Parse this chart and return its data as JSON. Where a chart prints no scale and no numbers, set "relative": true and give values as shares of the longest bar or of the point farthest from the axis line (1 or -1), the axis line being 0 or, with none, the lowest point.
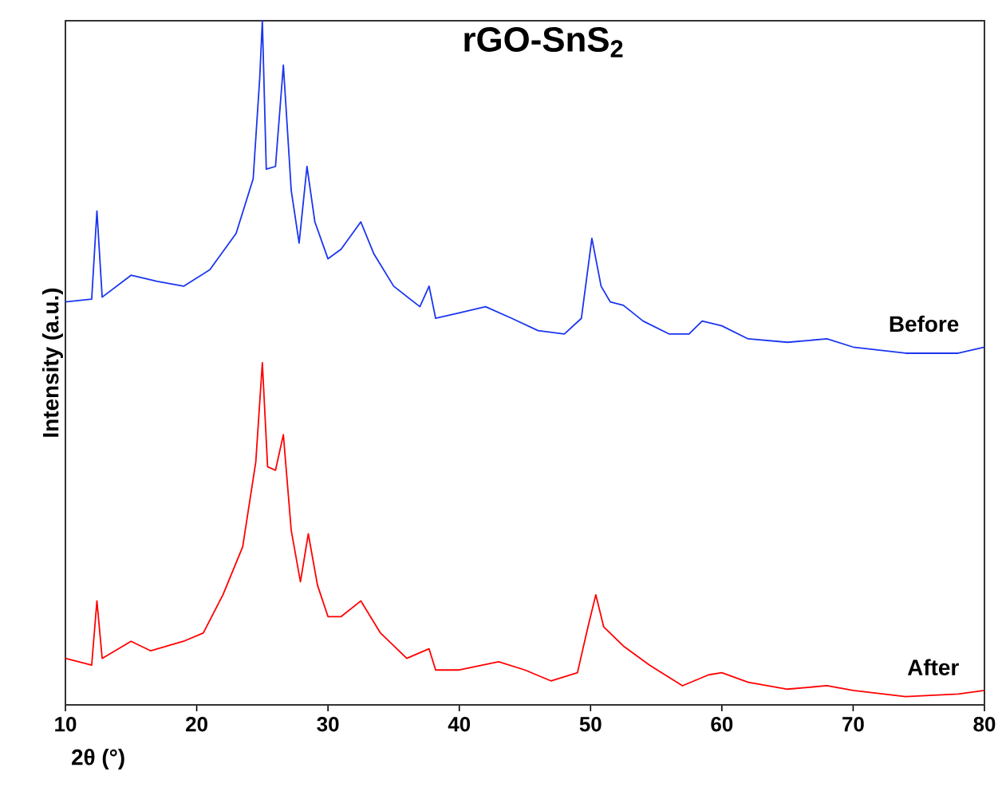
{
  "chart_data": {
    "type": "line",
    "title": "rGO-SnS$_{2}$",
    "xlabel": "2θ (°)",
    "ylabel": "Intensity (a.u.)",
    "relative": true,
    "xlim": [
      10,
      80
    ],
    "xticks": [
      10,
      20,
      30,
      40,
      50,
      60,
      70,
      80
    ],
    "tick_labels": "x",
    "grid": false,
    "line_style": "solid",
    "marker": "none",
    "series": [
      {
        "name": "Before",
        "color": "#1a35f0",
        "x": [
          10,
          12,
          12.4,
          12.8,
          15,
          17,
          19,
          21,
          23,
          24.3,
          24.8,
          25.0,
          25.3,
          26,
          26.6,
          27.2,
          27.8,
          28.4,
          29.0,
          30,
          31,
          32.5,
          33.5,
          35,
          37,
          37.7,
          38.2,
          40,
          42,
          44,
          46,
          48,
          49.3,
          50.1,
          50.8,
          51.5,
          52.5,
          54,
          56,
          57.5,
          58.5,
          60,
          62,
          65,
          68,
          70,
          74,
          78,
          80
        ],
        "values": [
          0.589,
          0.593,
          0.722,
          0.596,
          0.628,
          0.619,
          0.612,
          0.636,
          0.689,
          0.769,
          0.916,
          1.0,
          0.783,
          0.787,
          0.935,
          0.752,
          0.675,
          0.787,
          0.706,
          0.652,
          0.666,
          0.706,
          0.659,
          0.612,
          0.582,
          0.612,
          0.565,
          0.573,
          0.582,
          0.565,
          0.547,
          0.542,
          0.565,
          0.682,
          0.612,
          0.589,
          0.584,
          0.561,
          0.542,
          0.542,
          0.561,
          0.554,
          0.535,
          0.53,
          0.535,
          0.523,
          0.514,
          0.514,
          0.523
        ]
      },
      {
        "name": "After",
        "color": "#ff0000",
        "x": [
          10,
          12,
          12.4,
          12.8,
          15,
          16.5,
          19,
          20.5,
          22,
          23.5,
          24.5,
          25.0,
          25.4,
          26.0,
          26.6,
          27.2,
          27.9,
          28.5,
          29.2,
          30,
          31,
          32.5,
          34,
          36,
          37.7,
          38.2,
          40,
          43,
          45,
          47,
          49,
          49.8,
          50.4,
          51,
          52.5,
          54.5,
          57,
          59,
          60,
          62,
          65,
          68,
          70,
          74,
          78,
          80
        ],
        "values": [
          0.068,
          0.058,
          0.152,
          0.068,
          0.093,
          0.079,
          0.093,
          0.105,
          0.161,
          0.231,
          0.355,
          0.5,
          0.348,
          0.343,
          0.395,
          0.255,
          0.18,
          0.25,
          0.175,
          0.129,
          0.129,
          0.152,
          0.105,
          0.068,
          0.082,
          0.051,
          0.051,
          0.063,
          0.051,
          0.035,
          0.047,
          0.114,
          0.161,
          0.114,
          0.086,
          0.058,
          0.028,
          0.044,
          0.047,
          0.033,
          0.023,
          0.028,
          0.021,
          0.012,
          0.016,
          0.021
        ]
      }
    ]
  }
}
